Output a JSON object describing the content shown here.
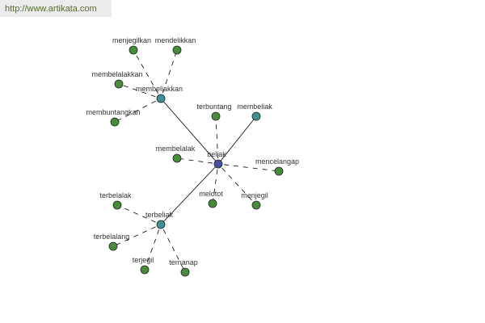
{
  "source_url": "http://www.artikata.com",
  "colors": {
    "root": "#4a4fa0",
    "hub": "#3f8f95",
    "leaf": "#4a8a3c",
    "edge": "#000000"
  },
  "nodes": [
    {
      "id": "beliak",
      "label": "beliak",
      "kind": "root"
    },
    {
      "id": "membeliakkan",
      "label": "membeliakkan",
      "kind": "hub"
    },
    {
      "id": "membeliak",
      "label": "membeliak",
      "kind": "hub"
    },
    {
      "id": "terbeliak",
      "label": "terbeliak",
      "kind": "hub"
    },
    {
      "id": "menjegilkan",
      "label": "menjegilkan",
      "kind": "leaf"
    },
    {
      "id": "mendelikkan",
      "label": "mendelikkan",
      "kind": "leaf"
    },
    {
      "id": "membelalakkan",
      "label": "membelalakkan",
      "kind": "leaf"
    },
    {
      "id": "membuntangkan",
      "label": "membuntangkan",
      "kind": "leaf"
    },
    {
      "id": "terbuntang",
      "label": "terbuntang",
      "kind": "leaf"
    },
    {
      "id": "membelalak",
      "label": "membelalak",
      "kind": "leaf"
    },
    {
      "id": "mencelangap",
      "label": "mencelangap",
      "kind": "leaf"
    },
    {
      "id": "melotot",
      "label": "melotot",
      "kind": "leaf"
    },
    {
      "id": "menjegil",
      "label": "menjegil",
      "kind": "leaf"
    },
    {
      "id": "terbelalak",
      "label": "terbelalak",
      "kind": "leaf"
    },
    {
      "id": "terbelalang",
      "label": "terbelalang",
      "kind": "leaf"
    },
    {
      "id": "terjegil",
      "label": "terjegil",
      "kind": "leaf"
    },
    {
      "id": "ternanap",
      "label": "ternanap",
      "kind": "leaf"
    }
  ],
  "edges": [
    {
      "from": "beliak",
      "to": "membeliakkan",
      "style": "solid"
    },
    {
      "from": "beliak",
      "to": "membeliak",
      "style": "solid"
    },
    {
      "from": "beliak",
      "to": "terbeliak",
      "style": "solid"
    },
    {
      "from": "membeliakkan",
      "to": "menjegilkan",
      "style": "dashed"
    },
    {
      "from": "membeliakkan",
      "to": "mendelikkan",
      "style": "dashed"
    },
    {
      "from": "membeliakkan",
      "to": "membelalakkan",
      "style": "dashed"
    },
    {
      "from": "membeliakkan",
      "to": "membuntangkan",
      "style": "dashed"
    },
    {
      "from": "beliak",
      "to": "terbuntang",
      "style": "dashed"
    },
    {
      "from": "beliak",
      "to": "membelalak",
      "style": "dashed"
    },
    {
      "from": "beliak",
      "to": "mencelangap",
      "style": "dashed"
    },
    {
      "from": "beliak",
      "to": "melotot",
      "style": "dashed"
    },
    {
      "from": "beliak",
      "to": "menjegil",
      "style": "dashed"
    },
    {
      "from": "terbeliak",
      "to": "terbelalak",
      "style": "dashed"
    },
    {
      "from": "terbeliak",
      "to": "terbelalang",
      "style": "dashed"
    },
    {
      "from": "terbeliak",
      "to": "terjegil",
      "style": "dashed"
    },
    {
      "from": "terbeliak",
      "to": "ternanap",
      "style": "dashed"
    }
  ]
}
